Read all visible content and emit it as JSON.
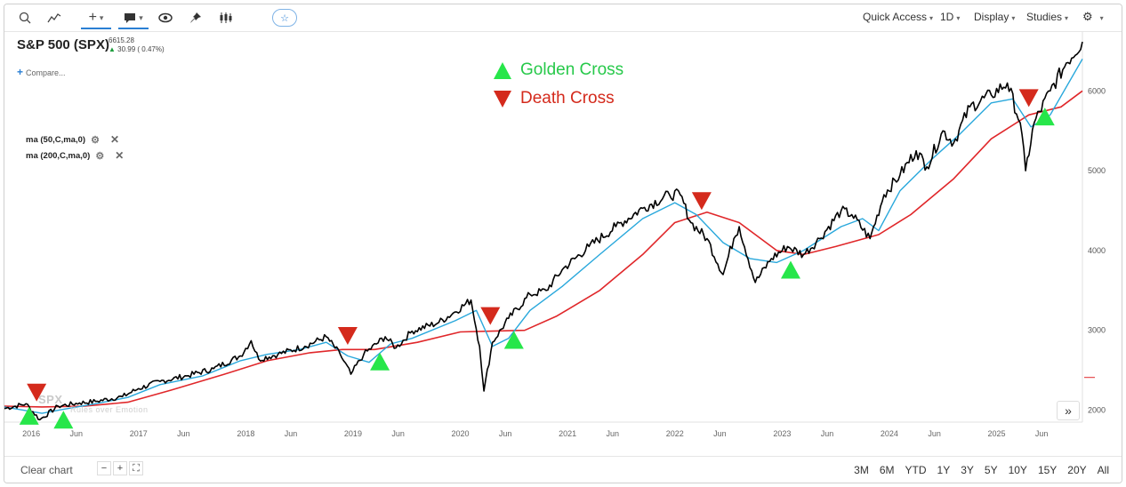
{
  "toolbar": {
    "quick_access": "Quick Access",
    "interval": "1D",
    "display": "Display",
    "studies": "Studies"
  },
  "symbol": {
    "title": "S&P 500 (SPX)",
    "price": "6615.28",
    "change": "30.99 ( 0.47%)"
  },
  "compare_label": "Compare...",
  "studies_list": [
    {
      "label": "ma (50,C,ma,0)"
    },
    {
      "label": "ma (200,C,ma,0)"
    }
  ],
  "legend": {
    "golden": "Golden Cross",
    "death": "Death Cross"
  },
  "watermark": "SPX",
  "colors": {
    "price": "#000000",
    "ma50": "#29a8dc",
    "ma200": "#e0272a",
    "golden": "#27e64a",
    "death": "#d42a1c"
  },
  "chart_data": {
    "type": "line",
    "x_ticks": [
      "2016",
      "Jun",
      "2017",
      "Jun",
      "2018",
      "Jun",
      "2019",
      "Jun",
      "2020",
      "Jun",
      "2021",
      "Jun",
      "2022",
      "Jun",
      "2023",
      "Jun",
      "2024",
      "Jun",
      "2025",
      "Jun"
    ],
    "y_ticks": [
      2000,
      3000,
      4000,
      5000,
      6000
    ],
    "ylim": [
      1850,
      6750
    ],
    "xlim": [
      2015.75,
      2025.8
    ],
    "series": [],
    "price": [
      [
        2015.75,
        2020
      ],
      [
        2015.95,
        2080
      ],
      [
        2016.08,
        1880
      ],
      [
        2016.25,
        2050
      ],
      [
        2016.45,
        2090
      ],
      [
        2016.6,
        2110
      ],
      [
        2016.85,
        2170
      ],
      [
        2017.0,
        2270
      ],
      [
        2017.2,
        2360
      ],
      [
        2017.45,
        2430
      ],
      [
        2017.7,
        2520
      ],
      [
        2017.95,
        2680
      ],
      [
        2018.05,
        2870
      ],
      [
        2018.12,
        2640
      ],
      [
        2018.3,
        2700
      ],
      [
        2018.55,
        2800
      ],
      [
        2018.75,
        2920
      ],
      [
        2018.88,
        2700
      ],
      [
        2018.98,
        2450
      ],
      [
        2019.1,
        2700
      ],
      [
        2019.3,
        2920
      ],
      [
        2019.4,
        2780
      ],
      [
        2019.55,
        2990
      ],
      [
        2019.8,
        3100
      ],
      [
        2019.95,
        3230
      ],
      [
        2020.1,
        3380
      ],
      [
        2020.18,
        2800
      ],
      [
        2020.22,
        2240
      ],
      [
        2020.3,
        2850
      ],
      [
        2020.45,
        3150
      ],
      [
        2020.65,
        3450
      ],
      [
        2020.8,
        3500
      ],
      [
        2020.95,
        3760
      ],
      [
        2021.2,
        4050
      ],
      [
        2021.45,
        4300
      ],
      [
        2021.7,
        4530
      ],
      [
        2021.95,
        4700
      ],
      [
        2022.05,
        4700
      ],
      [
        2022.15,
        4350
      ],
      [
        2022.3,
        4150
      ],
      [
        2022.45,
        3700
      ],
      [
        2022.55,
        4150
      ],
      [
        2022.6,
        4300
      ],
      [
        2022.75,
        3600
      ],
      [
        2022.9,
        3900
      ],
      [
        2023.05,
        4050
      ],
      [
        2023.2,
        3950
      ],
      [
        2023.35,
        4150
      ],
      [
        2023.55,
        4500
      ],
      [
        2023.65,
        4450
      ],
      [
        2023.82,
        4150
      ],
      [
        2023.95,
        4700
      ],
      [
        2024.1,
        4950
      ],
      [
        2024.25,
        5250
      ],
      [
        2024.35,
        5050
      ],
      [
        2024.5,
        5500
      ],
      [
        2024.6,
        5350
      ],
      [
        2024.75,
        5800
      ],
      [
        2024.95,
        5950
      ],
      [
        2025.1,
        6100
      ],
      [
        2025.22,
        5600
      ],
      [
        2025.27,
        5000
      ],
      [
        2025.35,
        5600
      ],
      [
        2025.5,
        6000
      ],
      [
        2025.65,
        6350
      ],
      [
        2025.8,
        6615
      ]
    ],
    "ma50": [
      [
        2015.75,
        2040
      ],
      [
        2016.1,
        1960
      ],
      [
        2016.3,
        2010
      ],
      [
        2016.6,
        2080
      ],
      [
        2016.9,
        2160
      ],
      [
        2017.2,
        2320
      ],
      [
        2017.6,
        2430
      ],
      [
        2017.95,
        2620
      ],
      [
        2018.2,
        2700
      ],
      [
        2018.5,
        2760
      ],
      [
        2018.75,
        2850
      ],
      [
        2018.95,
        2680
      ],
      [
        2019.15,
        2600
      ],
      [
        2019.35,
        2830
      ],
      [
        2019.55,
        2900
      ],
      [
        2019.95,
        3120
      ],
      [
        2020.15,
        3250
      ],
      [
        2020.3,
        2800
      ],
      [
        2020.45,
        2900
      ],
      [
        2020.65,
        3250
      ],
      [
        2020.95,
        3550
      ],
      [
        2021.3,
        3950
      ],
      [
        2021.7,
        4400
      ],
      [
        2022.0,
        4600
      ],
      [
        2022.2,
        4450
      ],
      [
        2022.45,
        4100
      ],
      [
        2022.7,
        3900
      ],
      [
        2022.95,
        3850
      ],
      [
        2023.2,
        4000
      ],
      [
        2023.55,
        4300
      ],
      [
        2023.75,
        4400
      ],
      [
        2023.9,
        4250
      ],
      [
        2024.1,
        4750
      ],
      [
        2024.4,
        5150
      ],
      [
        2024.65,
        5450
      ],
      [
        2024.95,
        5850
      ],
      [
        2025.15,
        5900
      ],
      [
        2025.32,
        5550
      ],
      [
        2025.5,
        5700
      ],
      [
        2025.8,
        6400
      ]
    ],
    "ma200": [
      [
        2015.75,
        2050
      ],
      [
        2016.1,
        2040
      ],
      [
        2016.5,
        2050
      ],
      [
        2016.9,
        2100
      ],
      [
        2017.3,
        2250
      ],
      [
        2017.8,
        2450
      ],
      [
        2018.2,
        2620
      ],
      [
        2018.6,
        2720
      ],
      [
        2018.9,
        2760
      ],
      [
        2019.2,
        2760
      ],
      [
        2019.6,
        2850
      ],
      [
        2020.0,
        2980
      ],
      [
        2020.3,
        2990
      ],
      [
        2020.6,
        3000
      ],
      [
        2020.9,
        3180
      ],
      [
        2021.3,
        3500
      ],
      [
        2021.7,
        3950
      ],
      [
        2022.0,
        4350
      ],
      [
        2022.3,
        4480
      ],
      [
        2022.6,
        4350
      ],
      [
        2022.95,
        4000
      ],
      [
        2023.2,
        3950
      ],
      [
        2023.5,
        4050
      ],
      [
        2023.9,
        4200
      ],
      [
        2024.2,
        4450
      ],
      [
        2024.6,
        4900
      ],
      [
        2024.95,
        5400
      ],
      [
        2025.3,
        5700
      ],
      [
        2025.6,
        5800
      ],
      [
        2025.8,
        6000
      ]
    ],
    "golden_crosses": [
      [
        2015.98,
        1930
      ],
      [
        2016.3,
        1880
      ],
      [
        2019.25,
        2610
      ],
      [
        2020.5,
        2880
      ],
      [
        2023.08,
        3760
      ],
      [
        2025.45,
        5680
      ]
    ],
    "death_crosses": [
      [
        2016.05,
        2220
      ],
      [
        2018.95,
        2930
      ],
      [
        2020.28,
        3180
      ],
      [
        2022.25,
        4620
      ],
      [
        2025.3,
        5910
      ]
    ]
  },
  "watermark_tagline": "Rules over Emotion",
  "ranges": [
    "3M",
    "6M",
    "YTD",
    "1Y",
    "3Y",
    "5Y",
    "10Y",
    "15Y",
    "20Y",
    "All"
  ],
  "bottom": {
    "clear_chart": "Clear chart"
  }
}
